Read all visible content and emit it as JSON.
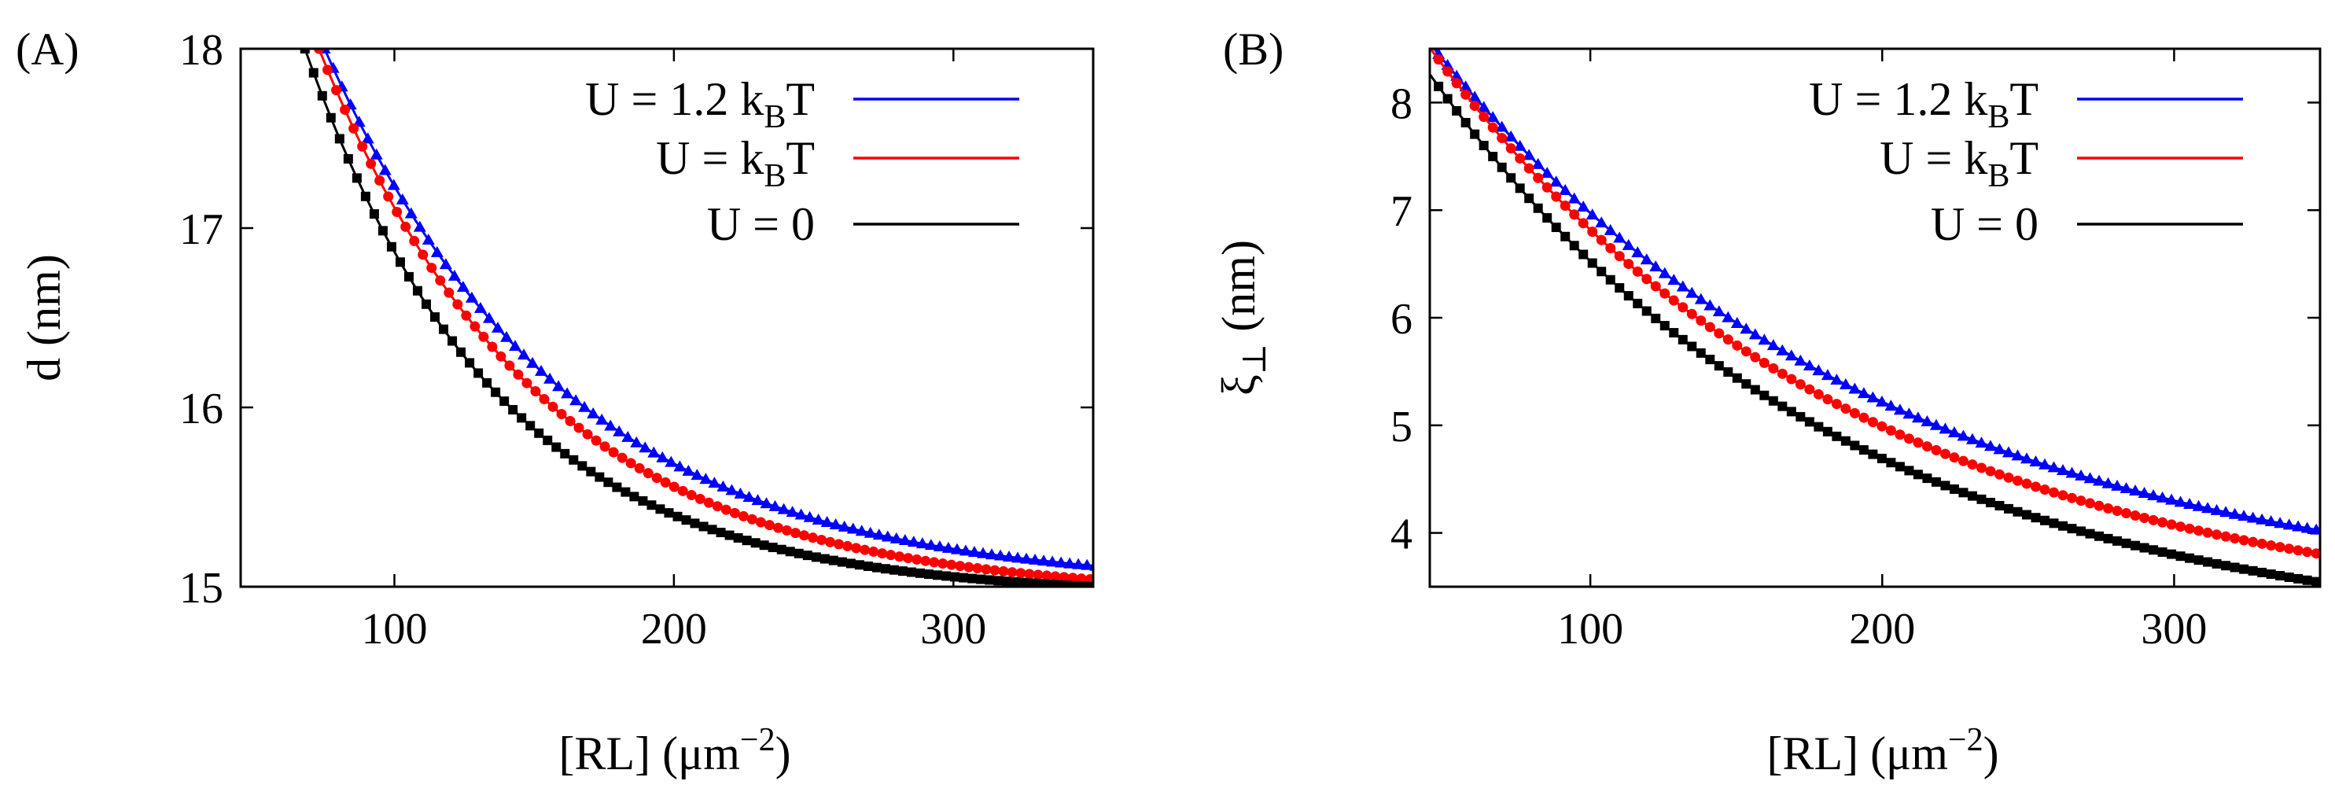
{
  "chart_data": [
    {
      "type": "scatter",
      "panel_label": "(A)",
      "xlabel_main": "[RL] (μm",
      "xlabel_exp": "−2",
      "xlabel_close": ")",
      "ylabel_main": "d (nm)",
      "ylabel_sub": "",
      "xlim": [
        45,
        350
      ],
      "ylim": [
        15,
        18
      ],
      "xticks": [
        100,
        200,
        300
      ],
      "yticks": [
        15,
        16,
        17,
        18
      ],
      "ytick_labels": [
        "15",
        "16",
        "17",
        "18"
      ],
      "legend": [
        {
          "pre": "U = 1.2 k",
          "sub": "B",
          "post": "T",
          "color": "#0000ff"
        },
        {
          "pre": "U = k",
          "sub": "B",
          "post": "T",
          "color": "#ff0000"
        },
        {
          "pre": "U = 0",
          "sub": "",
          "post": "",
          "color": "#000000"
        }
      ],
      "series": [
        {
          "name": "U = 1.2 kBT",
          "color": "#0000ff",
          "marker": "triangle",
          "x0": 75,
          "c": 15.0,
          "a": 3.0,
          "k": 0.0118
        },
        {
          "name": "U = kBT",
          "color": "#ff0000",
          "marker": "circle",
          "x0": 73,
          "c": 14.95,
          "a": 3.05,
          "k": 0.0127
        },
        {
          "name": "U = 0",
          "color": "#000000",
          "marker": "square",
          "x0": 68,
          "c": 14.95,
          "a": 3.05,
          "k": 0.0145
        }
      ]
    },
    {
      "type": "scatter",
      "panel_label": "(B)",
      "xlabel_main": "[RL] (μm",
      "xlabel_exp": "−2",
      "xlabel_close": ")",
      "ylabel_main": "ξ",
      "ylabel_sub": "⊥",
      "ylabel_units": " (nm)",
      "xlim": [
        45,
        350
      ],
      "ylim": [
        3.5,
        8.5
      ],
      "xticks": [
        100,
        200,
        300
      ],
      "yticks": [
        4,
        5,
        6,
        7,
        8
      ],
      "ytick_labels": [
        "4",
        "5",
        "6",
        "7",
        "8"
      ],
      "legend": [
        {
          "pre": "U = 1.2 k",
          "sub": "B",
          "post": "T",
          "color": "#0000ff"
        },
        {
          "pre": "U = k",
          "sub": "B",
          "post": "T",
          "color": "#ff0000"
        },
        {
          "pre": "U = 0",
          "sub": "",
          "post": "",
          "color": "#000000"
        }
      ],
      "series": [
        {
          "name": "U = 1.2 kBT",
          "color": "#0000ff",
          "marker": "triangle",
          "x0": 48,
          "c": 3.3,
          "a": 5.15,
          "k": 0.0065
        },
        {
          "name": "U = kBT",
          "color": "#ff0000",
          "marker": "circle",
          "x0": 48,
          "c": 3.15,
          "a": 5.25,
          "k": 0.0069
        },
        {
          "name": "U = 0",
          "color": "#000000",
          "marker": "square",
          "x0": 48,
          "c": 2.95,
          "a": 5.2,
          "k": 0.0072
        }
      ]
    }
  ]
}
